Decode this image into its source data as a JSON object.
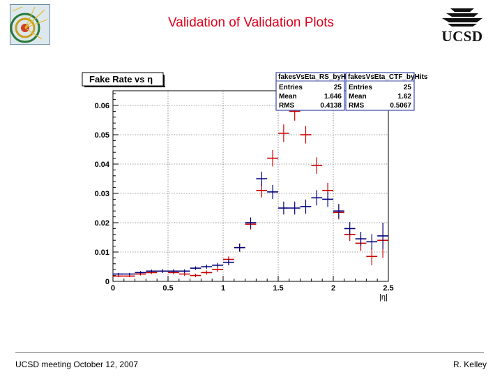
{
  "slide": {
    "title": "Validation of Validation Plots",
    "footer_left": "UCSD meeting October 12, 2007",
    "footer_right": "R. Kelley",
    "logo_right": "UCSD"
  },
  "colors": {
    "title": "#e0001b",
    "red_series": "#cc0000",
    "blue_series": "#00007a",
    "stats_border": "#3b4aa8"
  },
  "chart_data": {
    "type": "scatter",
    "title": "Fake Rate vs η",
    "xlabel": "|η|",
    "ylabel": "",
    "xlim": [
      0,
      2.5
    ],
    "ylim": [
      0,
      0.065
    ],
    "x_ticks": [
      "0",
      "0.5",
      "1",
      "1.5",
      "2",
      "2.5"
    ],
    "y_ticks": [
      "0",
      "0.01",
      "0.02",
      "0.03",
      "0.04",
      "0.05",
      "0.06"
    ],
    "grid": true,
    "bin_width": 0.1,
    "series": [
      {
        "name": "fakesVsEta_RS_byHits",
        "color": "red",
        "x": [
          0.05,
          0.15,
          0.25,
          0.35,
          0.45,
          0.55,
          0.65,
          0.75,
          0.85,
          0.95,
          1.05,
          1.15,
          1.25,
          1.35,
          1.45,
          1.55,
          1.65,
          1.75,
          1.85,
          1.95,
          2.05,
          2.15,
          2.25,
          2.35,
          2.45
        ],
        "values": [
          0.0018,
          0.0018,
          0.0025,
          0.003,
          0.0035,
          0.003,
          0.0025,
          0.002,
          0.003,
          0.004,
          0.0075,
          0.0115,
          0.0195,
          0.031,
          0.042,
          0.0505,
          0.058,
          0.05,
          0.0395,
          0.031,
          0.0235,
          0.016,
          0.013,
          0.0085,
          0.014
        ],
        "errors": [
          0.0004,
          0.0004,
          0.0005,
          0.0005,
          0.0006,
          0.0006,
          0.0006,
          0.0006,
          0.0007,
          0.0008,
          0.001,
          0.0014,
          0.0018,
          0.0024,
          0.0028,
          0.003,
          0.0032,
          0.003,
          0.0028,
          0.0026,
          0.0024,
          0.0022,
          0.0026,
          0.003,
          0.006
        ]
      },
      {
        "name": "fakesVsEta_CTF_byHits",
        "color": "blue",
        "x": [
          0.05,
          0.15,
          0.25,
          0.35,
          0.45,
          0.55,
          0.65,
          0.75,
          0.85,
          0.95,
          1.05,
          1.15,
          1.25,
          1.35,
          1.45,
          1.55,
          1.65,
          1.75,
          1.85,
          1.95,
          2.05,
          2.15,
          2.25,
          2.35,
          2.45
        ],
        "values": [
          0.0025,
          0.0025,
          0.003,
          0.0035,
          0.0035,
          0.0035,
          0.0035,
          0.0045,
          0.005,
          0.0055,
          0.0065,
          0.0115,
          0.02,
          0.035,
          0.0305,
          0.025,
          0.025,
          0.0255,
          0.0285,
          0.028,
          0.024,
          0.018,
          0.0145,
          0.0135,
          0.0155
        ],
        "errors": [
          0.0004,
          0.0004,
          0.0005,
          0.0005,
          0.0006,
          0.0006,
          0.0006,
          0.0006,
          0.0007,
          0.0008,
          0.001,
          0.0014,
          0.0018,
          0.0024,
          0.0024,
          0.0022,
          0.0022,
          0.0024,
          0.0026,
          0.0026,
          0.0024,
          0.0022,
          0.0024,
          0.0026,
          0.0045
        ]
      }
    ],
    "stats_boxes": [
      {
        "name": "fakesVsEta_RS_byHits",
        "entries_label": "Entries",
        "entries": "25",
        "mean_label": "Mean",
        "mean": "1.646",
        "rms_label": "RMS",
        "rms": "0.4138"
      },
      {
        "name": "fakesVsEta_CTF_byHits",
        "entries_label": "Entries",
        "entries": "25",
        "mean_label": "Mean",
        "mean": "1.62",
        "rms_label": "RMS",
        "rms": "0.5067"
      }
    ]
  }
}
